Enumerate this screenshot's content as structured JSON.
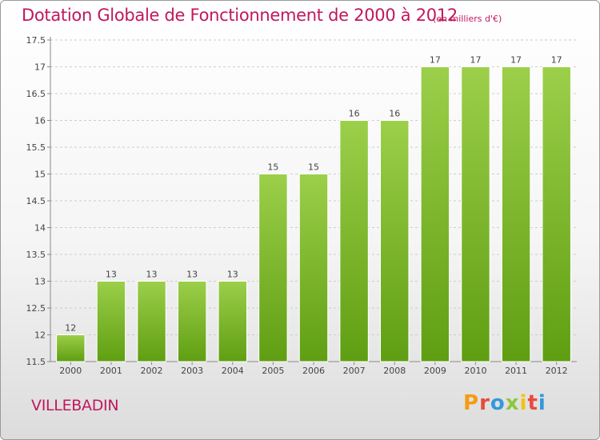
{
  "header": {
    "title": "Dotation Globale de Fonctionnement de 2000 à 2012",
    "subtitle": "(en milliers d'€)"
  },
  "footer": {
    "commune": "VILLEBADIN",
    "brand": "Proxiti",
    "brand_colors": [
      "#f39c12",
      "#e74c3c",
      "#3498db",
      "#8cc63f",
      "#f1c40f",
      "#e74c3c",
      "#3498db"
    ]
  },
  "colors": {
    "title": "#c0185e",
    "bar_top": "#9ccf4a",
    "bar_bottom": "#5f9e12",
    "grid": "#cccccc"
  },
  "chart_data": {
    "type": "bar",
    "title": "Dotation Globale de Fonctionnement de 2000 à 2012",
    "subtitle": "(en milliers d'€)",
    "xlabel": "",
    "ylabel": "",
    "categories": [
      "2000",
      "2001",
      "2002",
      "2003",
      "2004",
      "2005",
      "2006",
      "2007",
      "2008",
      "2009",
      "2010",
      "2011",
      "2012"
    ],
    "values": [
      12,
      13,
      13,
      13,
      13,
      15,
      15,
      16,
      16,
      17,
      17,
      17,
      17
    ],
    "ylim": [
      11.5,
      17.5
    ],
    "yticks": [
      "11.5",
      "12",
      "12.5",
      "13",
      "13.5",
      "14",
      "14.5",
      "15",
      "15.5",
      "16",
      "16.5",
      "17",
      "17.5"
    ],
    "grid": true,
    "data_labels": true
  }
}
